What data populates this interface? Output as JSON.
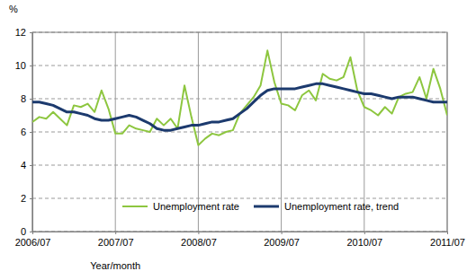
{
  "chart_data": {
    "type": "line",
    "y_label": "%",
    "x_label": "Year/month",
    "categories": [
      "2006/07",
      null,
      null,
      null,
      null,
      null,
      null,
      null,
      null,
      null,
      null,
      null,
      "2007/07",
      null,
      null,
      null,
      null,
      null,
      null,
      null,
      null,
      null,
      null,
      null,
      "2008/07",
      null,
      null,
      null,
      null,
      null,
      null,
      null,
      null,
      null,
      null,
      null,
      "2009/07",
      null,
      null,
      null,
      null,
      null,
      null,
      null,
      null,
      null,
      null,
      null,
      "2010/07",
      null,
      null,
      null,
      null,
      null,
      null,
      null,
      null,
      null,
      null,
      null,
      "2011/07"
    ],
    "series": [
      {
        "name": "Unemployment rate",
        "color": "#8dc63f",
        "values": [
          6.6,
          6.9,
          6.8,
          7.2,
          6.8,
          6.4,
          7.6,
          7.5,
          7.7,
          7.2,
          8.5,
          7.4,
          5.9,
          5.9,
          6.4,
          6.2,
          6.1,
          6.0,
          6.8,
          6.4,
          6.8,
          6.2,
          8.8,
          6.9,
          5.2,
          5.6,
          5.9,
          5.8,
          6.0,
          6.1,
          7.1,
          7.6,
          8.1,
          8.8,
          10.9,
          9.0,
          7.7,
          7.6,
          7.3,
          8.2,
          8.5,
          7.9,
          9.5,
          9.2,
          9.1,
          9.3,
          10.5,
          8.5,
          7.5,
          7.3,
          7.0,
          7.5,
          7.1,
          8.1,
          8.3,
          8.4,
          9.3,
          8.0,
          9.8,
          8.6,
          7.0
        ]
      },
      {
        "name": "Unemployment rate, trend",
        "color": "#1c3a6e",
        "values": [
          7.8,
          7.8,
          7.7,
          7.6,
          7.4,
          7.2,
          7.2,
          7.1,
          7.0,
          6.8,
          6.7,
          6.7,
          6.8,
          6.9,
          7.0,
          6.9,
          6.7,
          6.5,
          6.2,
          6.1,
          6.1,
          6.2,
          6.3,
          6.4,
          6.4,
          6.5,
          6.6,
          6.6,
          6.7,
          6.8,
          7.1,
          7.4,
          7.8,
          8.2,
          8.5,
          8.6,
          8.6,
          8.6,
          8.6,
          8.7,
          8.8,
          8.9,
          8.9,
          8.8,
          8.7,
          8.6,
          8.5,
          8.4,
          8.3,
          8.3,
          8.2,
          8.1,
          8.0,
          8.1,
          8.1,
          8.1,
          8.0,
          7.9,
          7.8,
          7.8,
          7.8
        ]
      }
    ],
    "ylim": [
      0,
      12
    ],
    "yticks": [
      0,
      2,
      4,
      6,
      8,
      10,
      12
    ],
    "grid": true,
    "legend": "bottom"
  }
}
